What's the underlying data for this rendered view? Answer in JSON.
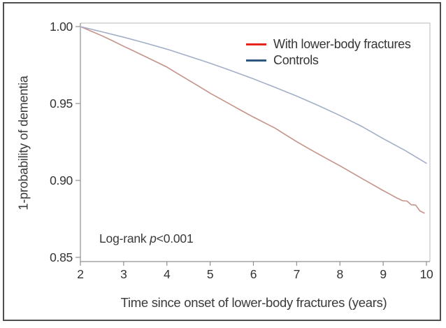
{
  "figure": {
    "background": "#ffffff",
    "border_color": "#4f4f4f"
  },
  "chart_data": {
    "type": "line",
    "title": "",
    "xlabel": "Time since onset of lower-body fractures (years)",
    "ylabel": "1-probability of dementia",
    "xlim": [
      2,
      10
    ],
    "ylim": [
      0.85,
      1.0
    ],
    "x_ticks": [
      2,
      3,
      4,
      5,
      6,
      7,
      8,
      9,
      10
    ],
    "y_ticks": [
      1.0,
      0.95,
      0.9,
      0.85
    ],
    "y_tick_labels": [
      "1.00",
      "0.95",
      "0.90",
      "0.85"
    ],
    "grid": false,
    "legend_position": "inside top-right",
    "axis_color": "#909090",
    "frame_color": "#c6c6c6",
    "text_color": "#3a3a3a",
    "annotation": {
      "prefix": "Log-rank ",
      "italic_var": "p",
      "suffix": "<0.001"
    },
    "series": [
      {
        "name": "With lower-body fractures",
        "legend_color": "#e8251c",
        "line_color": "#c4948a",
        "points": [
          [
            2,
            1.0
          ],
          [
            2.25,
            0.997
          ],
          [
            2.5,
            0.994
          ],
          [
            2.75,
            0.9907
          ],
          [
            3,
            0.9872
          ],
          [
            3.25,
            0.9839
          ],
          [
            3.5,
            0.9805
          ],
          [
            3.75,
            0.9771
          ],
          [
            4,
            0.9737
          ],
          [
            4.25,
            0.9694
          ],
          [
            4.5,
            0.9652
          ],
          [
            4.75,
            0.961
          ],
          [
            5,
            0.9567
          ],
          [
            5.25,
            0.9528
          ],
          [
            5.5,
            0.9489
          ],
          [
            5.75,
            0.945
          ],
          [
            6,
            0.9412
          ],
          [
            6.25,
            0.9376
          ],
          [
            6.5,
            0.934
          ],
          [
            6.75,
            0.9296
          ],
          [
            7,
            0.9252
          ],
          [
            7.25,
            0.9212
          ],
          [
            7.5,
            0.9172
          ],
          [
            7.75,
            0.9133
          ],
          [
            8,
            0.9095
          ],
          [
            8.25,
            0.9055
          ],
          [
            8.5,
            0.9014
          ],
          [
            8.75,
            0.8974
          ],
          [
            9,
            0.8934
          ],
          [
            9.15,
            0.8912
          ],
          [
            9.3,
            0.8888
          ],
          [
            9.45,
            0.8868
          ],
          [
            9.55,
            0.8866
          ],
          [
            9.65,
            0.8842
          ],
          [
            9.75,
            0.884
          ],
          [
            9.85,
            0.8802
          ],
          [
            9.95,
            0.8788
          ]
        ]
      },
      {
        "name": "Controls",
        "legend_color": "#2e587e",
        "line_color": "#a3aec7",
        "points": [
          [
            2,
            1.0
          ],
          [
            2.5,
            0.9966
          ],
          [
            3,
            0.9931
          ],
          [
            3.5,
            0.9893
          ],
          [
            4,
            0.9853
          ],
          [
            4.5,
            0.9808
          ],
          [
            5,
            0.9762
          ],
          [
            5.5,
            0.9712
          ],
          [
            6,
            0.966
          ],
          [
            6.5,
            0.9605
          ],
          [
            7,
            0.9548
          ],
          [
            7.5,
            0.9487
          ],
          [
            8,
            0.9422
          ],
          [
            8.5,
            0.9352
          ],
          [
            9,
            0.9272
          ],
          [
            9.5,
            0.9196
          ],
          [
            10,
            0.9112
          ]
        ]
      }
    ]
  }
}
